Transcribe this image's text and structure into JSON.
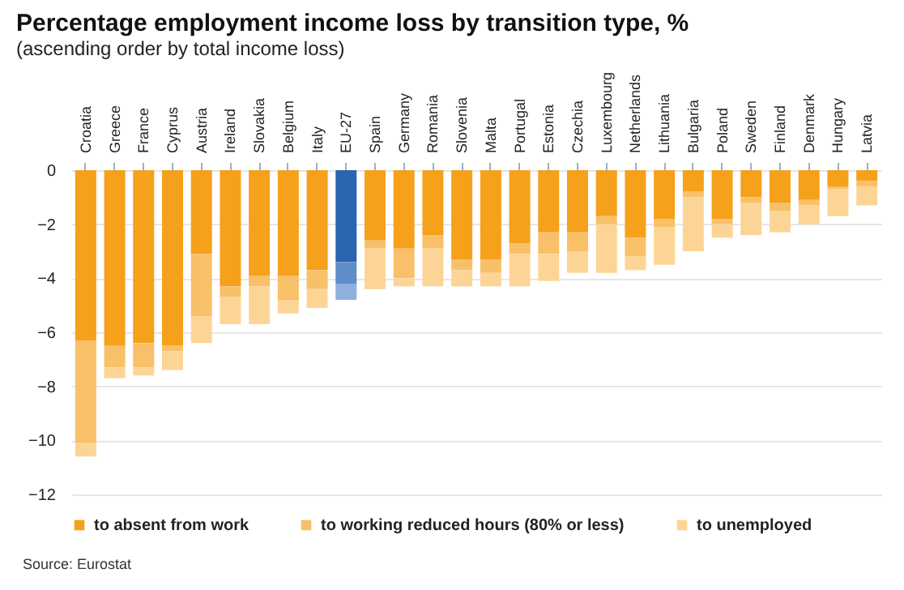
{
  "chart_data": {
    "type": "bar",
    "title": "Percentage employment income loss by transition type, %",
    "subtitle": "(ascending order by total income loss)",
    "categories": [
      "Croatia",
      "Greece",
      "France",
      "Cyprus",
      "Austria",
      "Ireland",
      "Slovakia",
      "Belgium",
      "Italy",
      "EU-27",
      "Spain",
      "Germany",
      "Romania",
      "Slovenia",
      "Malta",
      "Portugal",
      "Estonia",
      "Czechia",
      "Luxembourg",
      "Netherlands",
      "Lithuania",
      "Bulgaria",
      "Poland",
      "Sweden",
      "Finland",
      "Denmark",
      "Hungary",
      "Latvia"
    ],
    "stacked": true,
    "series": [
      {
        "name": "to absent from work",
        "color": "#f5a11c",
        "colors": [
          "#f5a11c",
          "#f5a11c",
          "#f5a11c",
          "#f5a11c",
          "#f5a11c",
          "#f5a11c",
          "#f5a11c",
          "#f5a11c",
          "#f5a11c",
          "#2a66b0",
          "#f5a11c",
          "#f5a11c",
          "#f5a11c",
          "#f5a11c",
          "#f5a11c",
          "#f5a11c",
          "#f5a11c",
          "#f5a11c",
          "#f5a11c",
          "#f5a11c",
          "#f5a11c",
          "#f5a11c",
          "#f5a11c",
          "#f5a11c",
          "#f5a11c",
          "#f5a11c",
          "#f5a11c",
          "#f5a11c"
        ],
        "values": [
          -6.3,
          -6.5,
          -6.4,
          -6.5,
          -3.1,
          -4.3,
          -3.9,
          -3.9,
          -3.7,
          -3.4,
          -2.6,
          -2.9,
          -2.4,
          -3.3,
          -3.3,
          -2.7,
          -2.3,
          -2.3,
          -1.7,
          -2.5,
          -1.8,
          -0.8,
          -1.8,
          -1.0,
          -1.2,
          -1.1,
          -0.6,
          -0.4
        ]
      },
      {
        "name": "to working reduced hours (80% or less)",
        "color": "#f9c06a",
        "colors": [
          "#f9c06a",
          "#f9c06a",
          "#f9c06a",
          "#f9c06a",
          "#f9c06a",
          "#f9c06a",
          "#f9c06a",
          "#f9c06a",
          "#f9c06a",
          "#5e8dca",
          "#f9c06a",
          "#f9c06a",
          "#f9c06a",
          "#f9c06a",
          "#f9c06a",
          "#f9c06a",
          "#f9c06a",
          "#f9c06a",
          "#f9c06a",
          "#f9c06a",
          "#f9c06a",
          "#f9c06a",
          "#f9c06a",
          "#f9c06a",
          "#f9c06a",
          "#f9c06a",
          "#f9c06a",
          "#f9c06a"
        ],
        "values": [
          -3.8,
          -0.8,
          -0.9,
          -0.2,
          -2.3,
          -0.4,
          -0.4,
          -0.9,
          -0.7,
          -0.8,
          -0.3,
          -1.1,
          -0.5,
          -0.4,
          -0.5,
          -0.4,
          -0.8,
          -0.7,
          -0.3,
          -0.7,
          -0.3,
          -0.2,
          -0.2,
          -0.2,
          -0.3,
          -0.2,
          -0.1,
          -0.2
        ]
      },
      {
        "name": "to unemployed",
        "color": "#fcd596",
        "colors": [
          "#fcd596",
          "#fcd596",
          "#fcd596",
          "#fcd596",
          "#fcd596",
          "#fcd596",
          "#fcd596",
          "#fcd596",
          "#fcd596",
          "#8fb0dc",
          "#fcd596",
          "#fcd596",
          "#fcd596",
          "#fcd596",
          "#fcd596",
          "#fcd596",
          "#fcd596",
          "#fcd596",
          "#fcd596",
          "#fcd596",
          "#fcd596",
          "#fcd596",
          "#fcd596",
          "#fcd596",
          "#fcd596",
          "#fcd596",
          "#fcd596",
          "#fcd596"
        ],
        "values": [
          -0.5,
          -0.4,
          -0.3,
          -0.7,
          -1.0,
          -1.0,
          -1.4,
          -0.5,
          -0.7,
          -0.6,
          -1.5,
          -0.3,
          -1.4,
          -0.6,
          -0.5,
          -1.2,
          -1.0,
          -0.8,
          -1.8,
          -0.5,
          -1.4,
          -2.0,
          -0.5,
          -1.2,
          -0.8,
          -0.7,
          -1.0,
          -0.7
        ]
      }
    ],
    "ylim": [
      -12,
      0
    ],
    "yticks": [
      0,
      -2,
      -4,
      -6,
      -8,
      -10,
      -12
    ],
    "grid": "y",
    "legend": "bottom",
    "annotations": [
      "Source: Eurostat"
    ]
  }
}
